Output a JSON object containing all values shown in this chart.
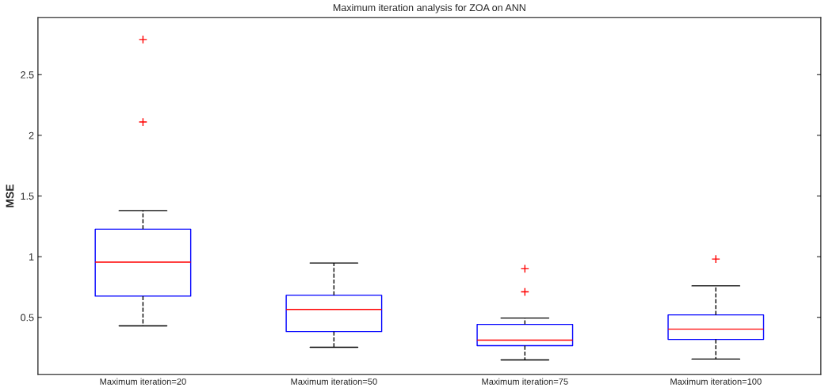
{
  "chart_data": {
    "type": "box",
    "title": "Maximum iteration analysis for ZOA on ANN",
    "ylabel": "MSE",
    "categories": [
      "Maximum iteration=20",
      "Maximum iteration=50",
      "Maximum iteration=75",
      "Maximum iteration=100"
    ],
    "boxes": [
      {
        "low": 0.43,
        "q1": 0.675,
        "median": 0.955,
        "q3": 1.227,
        "high": 1.38,
        "outliers": [
          2.79,
          2.11
        ]
      },
      {
        "low": 0.253,
        "q1": 0.383,
        "median": 0.565,
        "q3": 0.682,
        "high": 0.948
      },
      {
        "low": 0.149,
        "q1": 0.266,
        "median": 0.312,
        "q3": 0.442,
        "high": 0.494,
        "outliers": [
          0.9,
          0.71
        ]
      },
      {
        "low": 0.156,
        "q1": 0.318,
        "median": 0.403,
        "q3": 0.52,
        "high": 0.76,
        "outliers": [
          0.98
        ]
      }
    ],
    "color": "#0000ff",
    "ylim": [
      0.03,
      2.97
    ],
    "yticks": [
      0.5,
      1,
      1.5,
      2,
      2.5
    ],
    "grid": false
  }
}
